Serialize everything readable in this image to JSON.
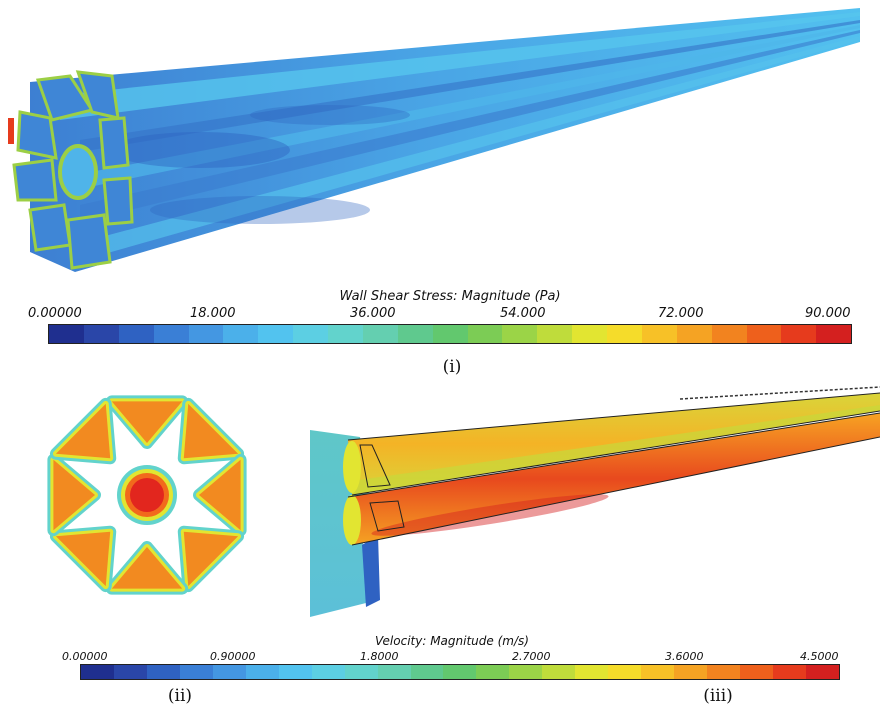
{
  "panels": {
    "top": {
      "caption": "(i)",
      "colorbar": {
        "title": "Wall Shear Stress: Magnitude (Pa)",
        "ticks": [
          "0.00000",
          "18.000",
          "36.000",
          "54.000",
          "72.000",
          "90.000"
        ]
      }
    },
    "bottom_left": {
      "caption": "(ii)"
    },
    "bottom_right": {
      "caption": "(iii)"
    },
    "velocity_colorbar": {
      "title": "Velocity: Magnitude (m/s)",
      "ticks": [
        "0.00000",
        "0.90000",
        "1.8000",
        "2.7000",
        "3.6000",
        "4.5000"
      ]
    }
  },
  "colormap": [
    "#1f2f8f",
    "#2a46a8",
    "#2f62c2",
    "#3a7fd6",
    "#4497e2",
    "#4bb0ea",
    "#52c3ef",
    "#5ccfe3",
    "#62d3cc",
    "#64cfb0",
    "#5fc98e",
    "#62c86e",
    "#7ccc55",
    "#9bd447",
    "#bfdc3b",
    "#e2e531",
    "#f5dc2a",
    "#f7c127",
    "#f5a323",
    "#f2831f",
    "#ee601c",
    "#e63b1d",
    "#d4201f"
  ],
  "colors": {
    "low": "#3f86d6",
    "mid": "#50b6ea",
    "edge_green": "#9ccf45",
    "vel_high": "#e8491e",
    "vel_mid": "#f7a021",
    "vel_yellow": "#e8da2e",
    "vel_cyan": "#5fc7c8"
  }
}
